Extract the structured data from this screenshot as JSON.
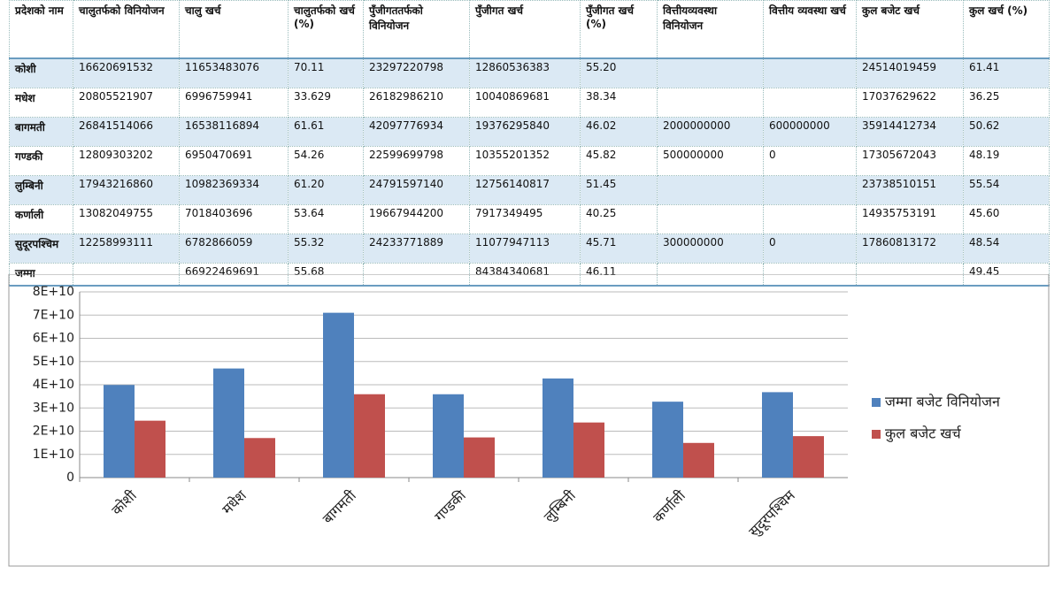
{
  "table": {
    "header": [
      "प्रदेशको नाम",
      "चालुतर्फको विनियोजन",
      "चालु खर्च",
      "चालुतर्फको खर्च (%)",
      "पुँजीगततर्फको विनियोजन",
      "पुँजीगत खर्च",
      "पुँजीगत खर्च (%)",
      "वित्तीयव्यवस्था विनियोजन",
      "वित्तीय व्यवस्था खर्च",
      "कुल बजेट खर्च",
      "कुल खर्च (%)"
    ],
    "rows": [
      [
        "कोशी",
        "16620691532",
        "11653483076",
        "70.11",
        "23297220798",
        "12860536383",
        "55.20",
        null,
        null,
        "24514019459",
        "61.41"
      ],
      [
        "मधेश",
        "20805521907",
        "6996759941",
        "33.629",
        "26182986210",
        "10040869681",
        "38.34",
        null,
        null,
        "17037629622",
        "36.25"
      ],
      [
        "बागमती",
        "26841514066",
        "16538116894",
        "61.61",
        "42097776934",
        "19376295840",
        "46.02",
        "2000000000",
        "600000000",
        "35914412734",
        "50.62"
      ],
      [
        "गण्डकी",
        "12809303202",
        "6950470691",
        "54.26",
        "22599699798",
        "10355201352",
        "45.82",
        "500000000",
        "0",
        "17305672043",
        "48.19"
      ],
      [
        "लुम्बिनी",
        "17943216860",
        "10982369334",
        "61.20",
        "24791597140",
        "12756140817",
        "51.45",
        null,
        null,
        "23738510151",
        "55.54"
      ],
      [
        "कर्णाली",
        "13082049755",
        "7018403696",
        "53.64",
        "19667944200",
        "7917349495",
        "40.25",
        null,
        null,
        "14935753191",
        "45.60"
      ],
      [
        "सुदूरपश्चिम",
        "12258993111",
        "6782866059",
        "55.32",
        "24233771889",
        "11077947113",
        "45.71",
        "300000000",
        "0",
        "17860813172",
        "48.54"
      ],
      [
        "जम्मा",
        null,
        "66922469691",
        "55.68",
        null,
        "84384340681",
        "46.11",
        null,
        null,
        null,
        "49.45"
      ]
    ]
  },
  "chart_data": {
    "type": "bar",
    "categories": [
      "कोशी",
      "मधेश",
      "बागमती",
      "गण्डकी",
      "लुम्बिनी",
      "कर्णाली",
      "सुदूरपश्चिम"
    ],
    "series": [
      {
        "name": "जम्मा बजेट विनियोजन",
        "color": "#4f81bd",
        "values": [
          39900000000,
          47000000000,
          71000000000,
          35900000000,
          42700000000,
          32700000000,
          36800000000
        ]
      },
      {
        "name": "कुल बजेट खर्च",
        "color": "#c0504d",
        "values": [
          24514019459,
          17037629622,
          35914412734,
          17305672043,
          23738510151,
          14935753191,
          17860813172
        ]
      }
    ],
    "ylim": [
      0,
      80000000000
    ],
    "yticks": [
      0,
      {
        "value": 10000000000,
        "label": "1E+10"
      },
      {
        "value": 20000000000,
        "label": "2E+10"
      },
      {
        "value": 30000000000,
        "label": "3E+10"
      },
      {
        "value": 40000000000,
        "label": "4E+10"
      },
      {
        "value": 50000000000,
        "label": "5E+10"
      },
      {
        "value": 60000000000,
        "label": "6E+10"
      },
      {
        "value": 70000000000,
        "label": "7E+10"
      },
      {
        "value": 80000000000,
        "label": "8E+10"
      }
    ],
    "grid": true,
    "legend": "right"
  }
}
